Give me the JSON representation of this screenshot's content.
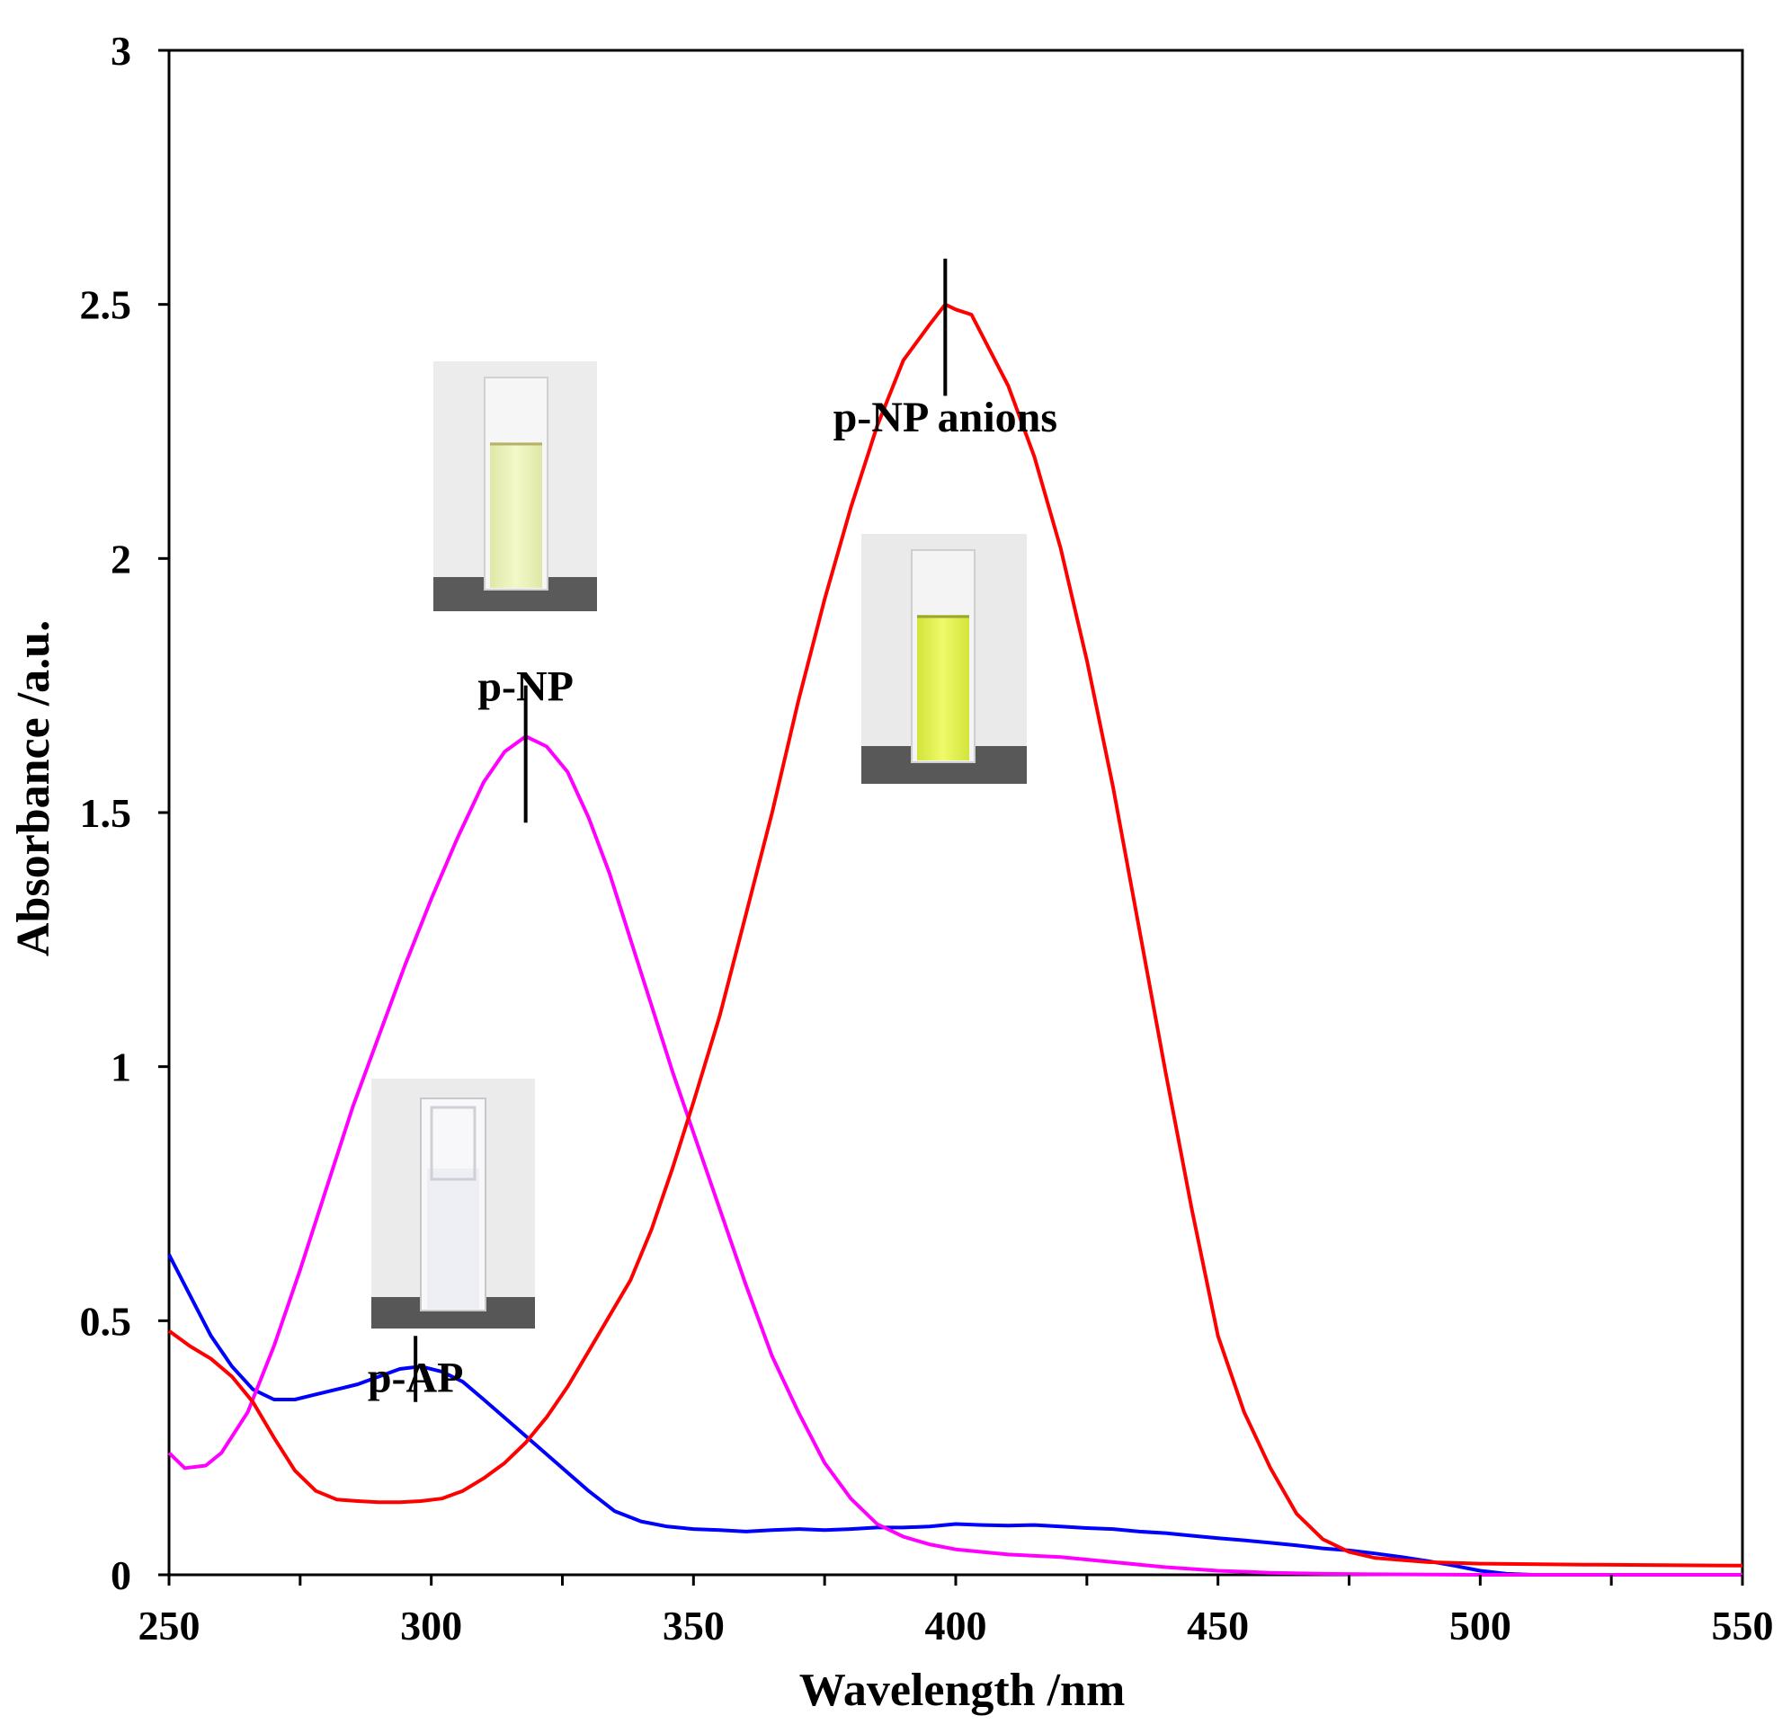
{
  "chart_data": {
    "type": "line",
    "title": "",
    "xlabel": "Wavelength /nm",
    "ylabel": "Absorbance /a.u.",
    "xlim": [
      250,
      550
    ],
    "ylim": [
      0,
      3
    ],
    "x_ticks": [
      250,
      300,
      350,
      400,
      450,
      500,
      550
    ],
    "x_tick_labels": [
      "250",
      "300",
      "350",
      "400",
      "450",
      "500",
      "550"
    ],
    "y_ticks": [
      0,
      0.5,
      1,
      1.5,
      2,
      2.5,
      3
    ],
    "y_tick_labels": [
      "0",
      "0.5",
      "1",
      "1.5",
      "2",
      "2.5",
      "3"
    ],
    "grid": false,
    "legend": "none",
    "series": [
      {
        "name": "p-AP",
        "color": "#0000ff",
        "points": [
          [
            250,
            0.63
          ],
          [
            254,
            0.55
          ],
          [
            258,
            0.47
          ],
          [
            262,
            0.41
          ],
          [
            266,
            0.365
          ],
          [
            270,
            0.345
          ],
          [
            274,
            0.345
          ],
          [
            278,
            0.355
          ],
          [
            282,
            0.365
          ],
          [
            286,
            0.375
          ],
          [
            290,
            0.39
          ],
          [
            294,
            0.405
          ],
          [
            298,
            0.41
          ],
          [
            302,
            0.4
          ],
          [
            306,
            0.38
          ],
          [
            310,
            0.345
          ],
          [
            315,
            0.3
          ],
          [
            320,
            0.255
          ],
          [
            325,
            0.21
          ],
          [
            330,
            0.165
          ],
          [
            335,
            0.125
          ],
          [
            340,
            0.105
          ],
          [
            345,
            0.095
          ],
          [
            350,
            0.09
          ],
          [
            355,
            0.088
          ],
          [
            360,
            0.085
          ],
          [
            365,
            0.088
          ],
          [
            370,
            0.09
          ],
          [
            375,
            0.088
          ],
          [
            380,
            0.09
          ],
          [
            385,
            0.093
          ],
          [
            390,
            0.093
          ],
          [
            395,
            0.095
          ],
          [
            400,
            0.1
          ],
          [
            405,
            0.098
          ],
          [
            410,
            0.097
          ],
          [
            415,
            0.098
          ],
          [
            420,
            0.095
          ],
          [
            425,
            0.092
          ],
          [
            430,
            0.09
          ],
          [
            435,
            0.085
          ],
          [
            440,
            0.082
          ],
          [
            445,
            0.077
          ],
          [
            450,
            0.072
          ],
          [
            455,
            0.068
          ],
          [
            460,
            0.063
          ],
          [
            465,
            0.058
          ],
          [
            470,
            0.052
          ],
          [
            475,
            0.048
          ],
          [
            480,
            0.042
          ],
          [
            485,
            0.035
          ],
          [
            490,
            0.027
          ],
          [
            495,
            0.018
          ],
          [
            500,
            0.008
          ],
          [
            505,
            0.002
          ],
          [
            510,
            0.0
          ],
          [
            550,
            0.0
          ]
        ]
      },
      {
        "name": "p-NP",
        "color": "#ff00ff",
        "points": [
          [
            250,
            0.24
          ],
          [
            253,
            0.21
          ],
          [
            257,
            0.215
          ],
          [
            260,
            0.24
          ],
          [
            265,
            0.32
          ],
          [
            270,
            0.45
          ],
          [
            275,
            0.6
          ],
          [
            280,
            0.76
          ],
          [
            285,
            0.92
          ],
          [
            290,
            1.06
          ],
          [
            295,
            1.2
          ],
          [
            300,
            1.33
          ],
          [
            305,
            1.45
          ],
          [
            310,
            1.56
          ],
          [
            314,
            1.62
          ],
          [
            318,
            1.65
          ],
          [
            322,
            1.63
          ],
          [
            326,
            1.58
          ],
          [
            330,
            1.49
          ],
          [
            334,
            1.38
          ],
          [
            338,
            1.25
          ],
          [
            342,
            1.12
          ],
          [
            346,
            0.99
          ],
          [
            350,
            0.87
          ],
          [
            355,
            0.72
          ],
          [
            360,
            0.57
          ],
          [
            365,
            0.43
          ],
          [
            370,
            0.32
          ],
          [
            375,
            0.22
          ],
          [
            380,
            0.15
          ],
          [
            385,
            0.1
          ],
          [
            390,
            0.075
          ],
          [
            395,
            0.06
          ],
          [
            400,
            0.05
          ],
          [
            410,
            0.04
          ],
          [
            420,
            0.035
          ],
          [
            430,
            0.025
          ],
          [
            440,
            0.015
          ],
          [
            450,
            0.008
          ],
          [
            460,
            0.004
          ],
          [
            470,
            0.002
          ],
          [
            480,
            0.001
          ],
          [
            500,
            0.0
          ],
          [
            550,
            0.0
          ]
        ]
      },
      {
        "name": "p-NP anions",
        "color": "#ff0000",
        "points": [
          [
            250,
            0.48
          ],
          [
            254,
            0.45
          ],
          [
            258,
            0.425
          ],
          [
            262,
            0.39
          ],
          [
            266,
            0.34
          ],
          [
            270,
            0.27
          ],
          [
            274,
            0.205
          ],
          [
            278,
            0.165
          ],
          [
            282,
            0.148
          ],
          [
            286,
            0.145
          ],
          [
            290,
            0.143
          ],
          [
            294,
            0.143
          ],
          [
            298,
            0.145
          ],
          [
            302,
            0.15
          ],
          [
            306,
            0.165
          ],
          [
            310,
            0.19
          ],
          [
            314,
            0.22
          ],
          [
            318,
            0.26
          ],
          [
            322,
            0.31
          ],
          [
            326,
            0.37
          ],
          [
            330,
            0.44
          ],
          [
            334,
            0.51
          ],
          [
            338,
            0.58
          ],
          [
            342,
            0.68
          ],
          [
            346,
            0.8
          ],
          [
            350,
            0.93
          ],
          [
            355,
            1.1
          ],
          [
            360,
            1.3
          ],
          [
            365,
            1.5
          ],
          [
            370,
            1.72
          ],
          [
            375,
            1.92
          ],
          [
            380,
            2.1
          ],
          [
            385,
            2.26
          ],
          [
            390,
            2.39
          ],
          [
            395,
            2.46
          ],
          [
            398,
            2.5
          ],
          [
            400,
            2.49
          ],
          [
            403,
            2.48
          ],
          [
            406,
            2.42
          ],
          [
            410,
            2.34
          ],
          [
            415,
            2.2
          ],
          [
            420,
            2.02
          ],
          [
            425,
            1.8
          ],
          [
            430,
            1.55
          ],
          [
            435,
            1.27
          ],
          [
            440,
            0.99
          ],
          [
            445,
            0.72
          ],
          [
            450,
            0.47
          ],
          [
            455,
            0.32
          ],
          [
            460,
            0.21
          ],
          [
            465,
            0.12
          ],
          [
            470,
            0.07
          ],
          [
            475,
            0.045
          ],
          [
            480,
            0.033
          ],
          [
            490,
            0.025
          ],
          [
            500,
            0.022
          ],
          [
            520,
            0.02
          ],
          [
            550,
            0.018
          ]
        ]
      }
    ],
    "annotations": [
      {
        "text": "p-AP",
        "x": 297,
        "y": 0.36,
        "marker_y": [
          0.34,
          0.47
        ]
      },
      {
        "text": "p-NP",
        "x": 318,
        "y": 1.72,
        "marker_y": [
          1.48,
          1.75
        ]
      },
      {
        "text": "p-NP anions",
        "x": 398,
        "y": 2.25,
        "marker_y": [
          2.32,
          2.59
        ]
      }
    ],
    "insets": [
      {
        "name": "p-NP cuvette photo",
        "liquid_color": "#eef5b4"
      },
      {
        "name": "p-NP anions cuvette photo",
        "liquid_color": "#e4f54a"
      },
      {
        "name": "p-AP cuvette photo",
        "liquid_color": "#eeeff3"
      }
    ]
  }
}
